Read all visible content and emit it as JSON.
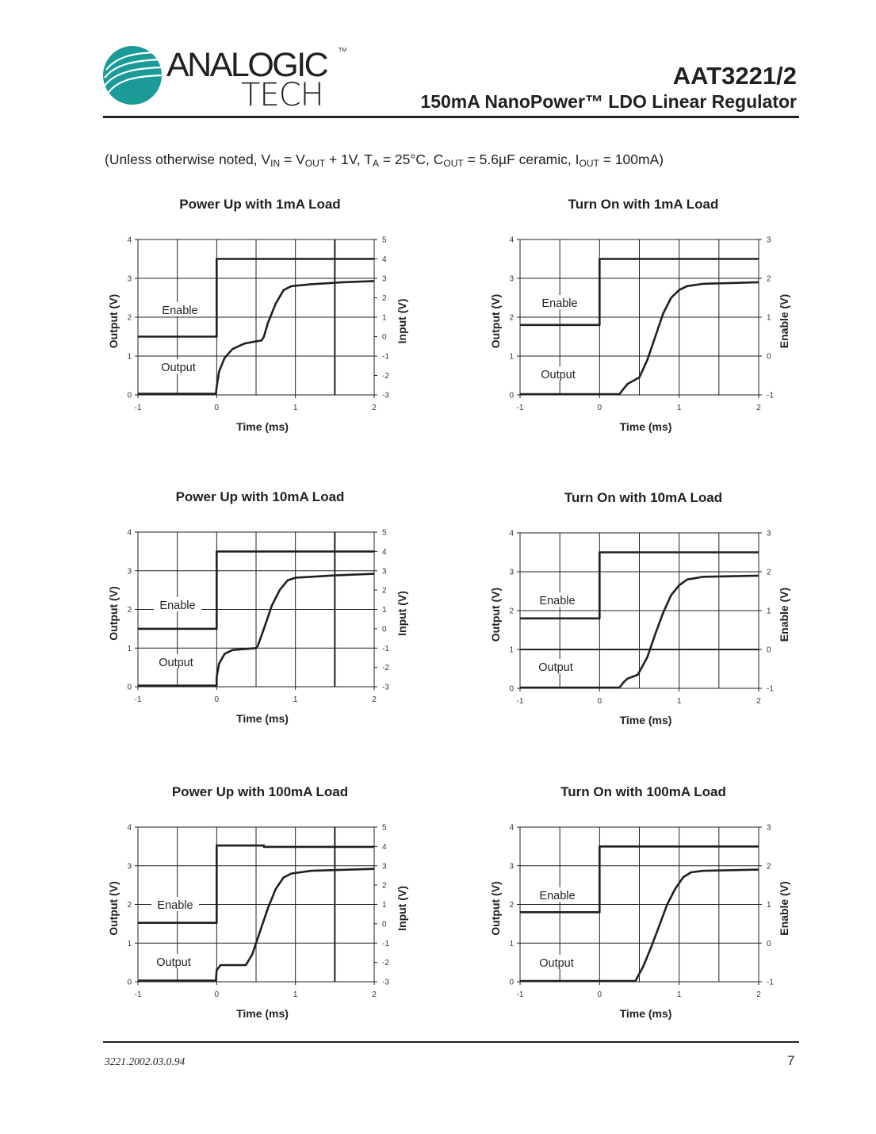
{
  "header": {
    "logo_text_top": "ANALOGIC",
    "logo_text_bottom": "TECH",
    "logo_tm": "TM",
    "logo_color": "#1a9b97",
    "part_number": "AAT3221/2",
    "subtitle": "150mA NanoPower™ LDO Linear Regulator"
  },
  "conditions": {
    "prefix": "(Unless otherwise noted, V",
    "vin_sub": "IN",
    "eq1": " = V",
    "vout_sub": "OUT",
    "mid1": " + 1V, T",
    "ta_sub": "A",
    "mid2": " = 25°C, C",
    "cout_sub": "OUT",
    "mid3": " = 5.6µF ceramic, I",
    "iout_sub": "OUT",
    "suffix": " = 100mA)"
  },
  "footer": {
    "doc_number": "3221.2002.03.0.94",
    "page_number": "7"
  },
  "chart_data": [
    {
      "type": "line",
      "title": "Power Up with 1mA Load",
      "xlabel": "Time (ms)",
      "ylabel": "Output (V)",
      "y2label": "Input (V)",
      "xlim": [
        -1,
        2
      ],
      "ylim": [
        0,
        4
      ],
      "y2lim": [
        -3,
        5
      ],
      "xticks": [
        -1,
        0,
        1,
        2
      ],
      "yticks": [
        0,
        1,
        2,
        3,
        4
      ],
      "y2ticks": [
        -3,
        -2,
        -1,
        0,
        1,
        2,
        3,
        4,
        5
      ],
      "grid": true,
      "series": [
        {
          "name": "Enable",
          "axis": "right",
          "points": [
            [
              -1,
              0
            ],
            [
              0,
              0
            ],
            [
              0,
              4
            ],
            [
              2,
              4
            ]
          ]
        },
        {
          "name": "Output",
          "axis": "left",
          "points": [
            [
              -1,
              0.03
            ],
            [
              -0.01,
              0.03
            ],
            [
              0,
              0.2
            ],
            [
              0.03,
              0.6
            ],
            [
              0.1,
              0.95
            ],
            [
              0.2,
              1.18
            ],
            [
              0.35,
              1.32
            ],
            [
              0.5,
              1.38
            ],
            [
              0.57,
              1.4
            ],
            [
              0.6,
              1.5
            ],
            [
              0.65,
              1.85
            ],
            [
              0.75,
              2.35
            ],
            [
              0.85,
              2.7
            ],
            [
              0.95,
              2.8
            ],
            [
              1.2,
              2.85
            ],
            [
              1.6,
              2.9
            ],
            [
              2,
              2.93
            ]
          ]
        }
      ]
    },
    {
      "type": "line",
      "title": "Turn On with 1mA Load",
      "xlabel": "Time (ms)",
      "ylabel": "Output (V)",
      "y2label": "Enable (V)",
      "xlim": [
        -1,
        2
      ],
      "ylim": [
        0,
        4
      ],
      "y2lim": [
        -1,
        3
      ],
      "xticks": [
        -1,
        0,
        1,
        2
      ],
      "yticks": [
        0,
        1,
        2,
        3,
        4
      ],
      "y2ticks": [
        -1,
        0,
        1,
        2,
        3
      ],
      "grid": true,
      "series": [
        {
          "name": "Enable",
          "axis": "right",
          "points": [
            [
              -1,
              0.8
            ],
            [
              0,
              0.8
            ],
            [
              0,
              2.5
            ],
            [
              2,
              2.5
            ]
          ]
        },
        {
          "name": "Output",
          "axis": "left",
          "points": [
            [
              -1,
              0.02
            ],
            [
              0.25,
              0.02
            ],
            [
              0.3,
              0.15
            ],
            [
              0.35,
              0.28
            ],
            [
              0.5,
              0.45
            ],
            [
              0.6,
              0.9
            ],
            [
              0.7,
              1.5
            ],
            [
              0.8,
              2.1
            ],
            [
              0.9,
              2.5
            ],
            [
              1.0,
              2.7
            ],
            [
              1.1,
              2.8
            ],
            [
              1.3,
              2.86
            ],
            [
              2,
              2.9
            ]
          ]
        }
      ]
    },
    {
      "type": "line",
      "title": "Power Up with 10mA Load",
      "xlabel": "Time (ms)",
      "ylabel": "Output (V)",
      "y2label": "Input (V)",
      "xlim": [
        -1,
        2
      ],
      "ylim": [
        0,
        4
      ],
      "y2lim": [
        -3,
        5
      ],
      "xticks": [
        -1,
        0,
        1,
        2
      ],
      "yticks": [
        0,
        1,
        2,
        3,
        4
      ],
      "y2ticks": [
        -3,
        -2,
        -1,
        0,
        1,
        2,
        3,
        4,
        5
      ],
      "grid": true,
      "series": [
        {
          "name": "Enable",
          "axis": "right",
          "points": [
            [
              -1,
              0
            ],
            [
              0,
              0
            ],
            [
              0,
              4
            ],
            [
              2,
              4
            ]
          ]
        },
        {
          "name": "Output",
          "axis": "left",
          "points": [
            [
              -1,
              0.03
            ],
            [
              0,
              0.03
            ],
            [
              0,
              0.25
            ],
            [
              0.03,
              0.6
            ],
            [
              0.1,
              0.85
            ],
            [
              0.2,
              0.95
            ],
            [
              0.5,
              1.0
            ],
            [
              0.52,
              1.05
            ],
            [
              0.6,
              1.5
            ],
            [
              0.7,
              2.1
            ],
            [
              0.8,
              2.5
            ],
            [
              0.9,
              2.75
            ],
            [
              1.0,
              2.82
            ],
            [
              1.5,
              2.88
            ],
            [
              2,
              2.92
            ]
          ]
        }
      ]
    },
    {
      "type": "line",
      "title": "Turn On with 10mA Load",
      "xlabel": "Time (ms)",
      "ylabel": "Output (V)",
      "y2label": "Enable (V)",
      "xlim": [
        -1,
        2
      ],
      "ylim": [
        0,
        4
      ],
      "y2lim": [
        -1,
        3
      ],
      "xticks": [
        -1,
        0,
        1,
        2
      ],
      "yticks": [
        0,
        1,
        2,
        3,
        4
      ],
      "y2ticks": [
        -1,
        0,
        1,
        2,
        3
      ],
      "grid": true,
      "series": [
        {
          "name": "Enable",
          "axis": "right",
          "points": [
            [
              -1,
              0.8
            ],
            [
              0,
              0.8
            ],
            [
              0,
              2.5
            ],
            [
              2,
              2.5
            ]
          ]
        },
        {
          "name": "Output",
          "axis": "left",
          "points": [
            [
              -1,
              0.02
            ],
            [
              0.25,
              0.02
            ],
            [
              0.3,
              0.15
            ],
            [
              0.35,
              0.25
            ],
            [
              0.48,
              0.35
            ],
            [
              0.6,
              0.8
            ],
            [
              0.7,
              1.4
            ],
            [
              0.8,
              1.95
            ],
            [
              0.9,
              2.4
            ],
            [
              1.0,
              2.65
            ],
            [
              1.1,
              2.8
            ],
            [
              1.3,
              2.87
            ],
            [
              2,
              2.9
            ]
          ]
        }
      ]
    },
    {
      "type": "line",
      "title": "Power Up with 100mA Load",
      "xlabel": "Time (ms)",
      "ylabel": "Output (V)",
      "y2label": "Input (V)",
      "xlim": [
        -1,
        2
      ],
      "ylim": [
        0,
        4
      ],
      "y2lim": [
        -3,
        5
      ],
      "xticks": [
        -1,
        0,
        1,
        2
      ],
      "yticks": [
        0,
        1,
        2,
        3,
        4
      ],
      "y2ticks": [
        -3,
        -2,
        -1,
        0,
        1,
        2,
        3,
        4,
        5
      ],
      "grid": true,
      "series": [
        {
          "name": "Enable",
          "axis": "right",
          "points": [
            [
              -1,
              0.05
            ],
            [
              0,
              0.05
            ],
            [
              0,
              4.05
            ],
            [
              0.6,
              4.05
            ],
            [
              0.6,
              3.98
            ],
            [
              2,
              3.98
            ]
          ]
        },
        {
          "name": "Output",
          "axis": "left",
          "points": [
            [
              -1,
              0.03
            ],
            [
              -0.01,
              0.03
            ],
            [
              0,
              0.3
            ],
            [
              0.05,
              0.43
            ],
            [
              0.37,
              0.43
            ],
            [
              0.45,
              0.7
            ],
            [
              0.55,
              1.3
            ],
            [
              0.65,
              1.9
            ],
            [
              0.75,
              2.4
            ],
            [
              0.85,
              2.7
            ],
            [
              0.95,
              2.8
            ],
            [
              1.2,
              2.87
            ],
            [
              2,
              2.92
            ]
          ]
        }
      ]
    },
    {
      "type": "line",
      "title": "Turn On with 100mA Load",
      "xlabel": "Time (ms)",
      "ylabel": "Output (V)",
      "y2label": "Enable (V)",
      "xlim": [
        -1,
        2
      ],
      "ylim": [
        0,
        4
      ],
      "y2lim": [
        -1,
        3
      ],
      "xticks": [
        -1,
        0,
        1,
        2
      ],
      "yticks": [
        0,
        1,
        2,
        3,
        4
      ],
      "y2ticks": [
        -1,
        0,
        1,
        2,
        3
      ],
      "grid": true,
      "series": [
        {
          "name": "Enable",
          "axis": "right",
          "points": [
            [
              -1,
              0.8
            ],
            [
              0,
              0.8
            ],
            [
              0,
              2.5
            ],
            [
              2,
              2.5
            ]
          ]
        },
        {
          "name": "Output",
          "axis": "left",
          "points": [
            [
              -1,
              0.02
            ],
            [
              0.45,
              0.02
            ],
            [
              0.55,
              0.4
            ],
            [
              0.65,
              0.9
            ],
            [
              0.75,
              1.45
            ],
            [
              0.85,
              2.0
            ],
            [
              0.95,
              2.4
            ],
            [
              1.05,
              2.7
            ],
            [
              1.15,
              2.83
            ],
            [
              1.3,
              2.87
            ],
            [
              2,
              2.9
            ]
          ]
        }
      ]
    }
  ]
}
